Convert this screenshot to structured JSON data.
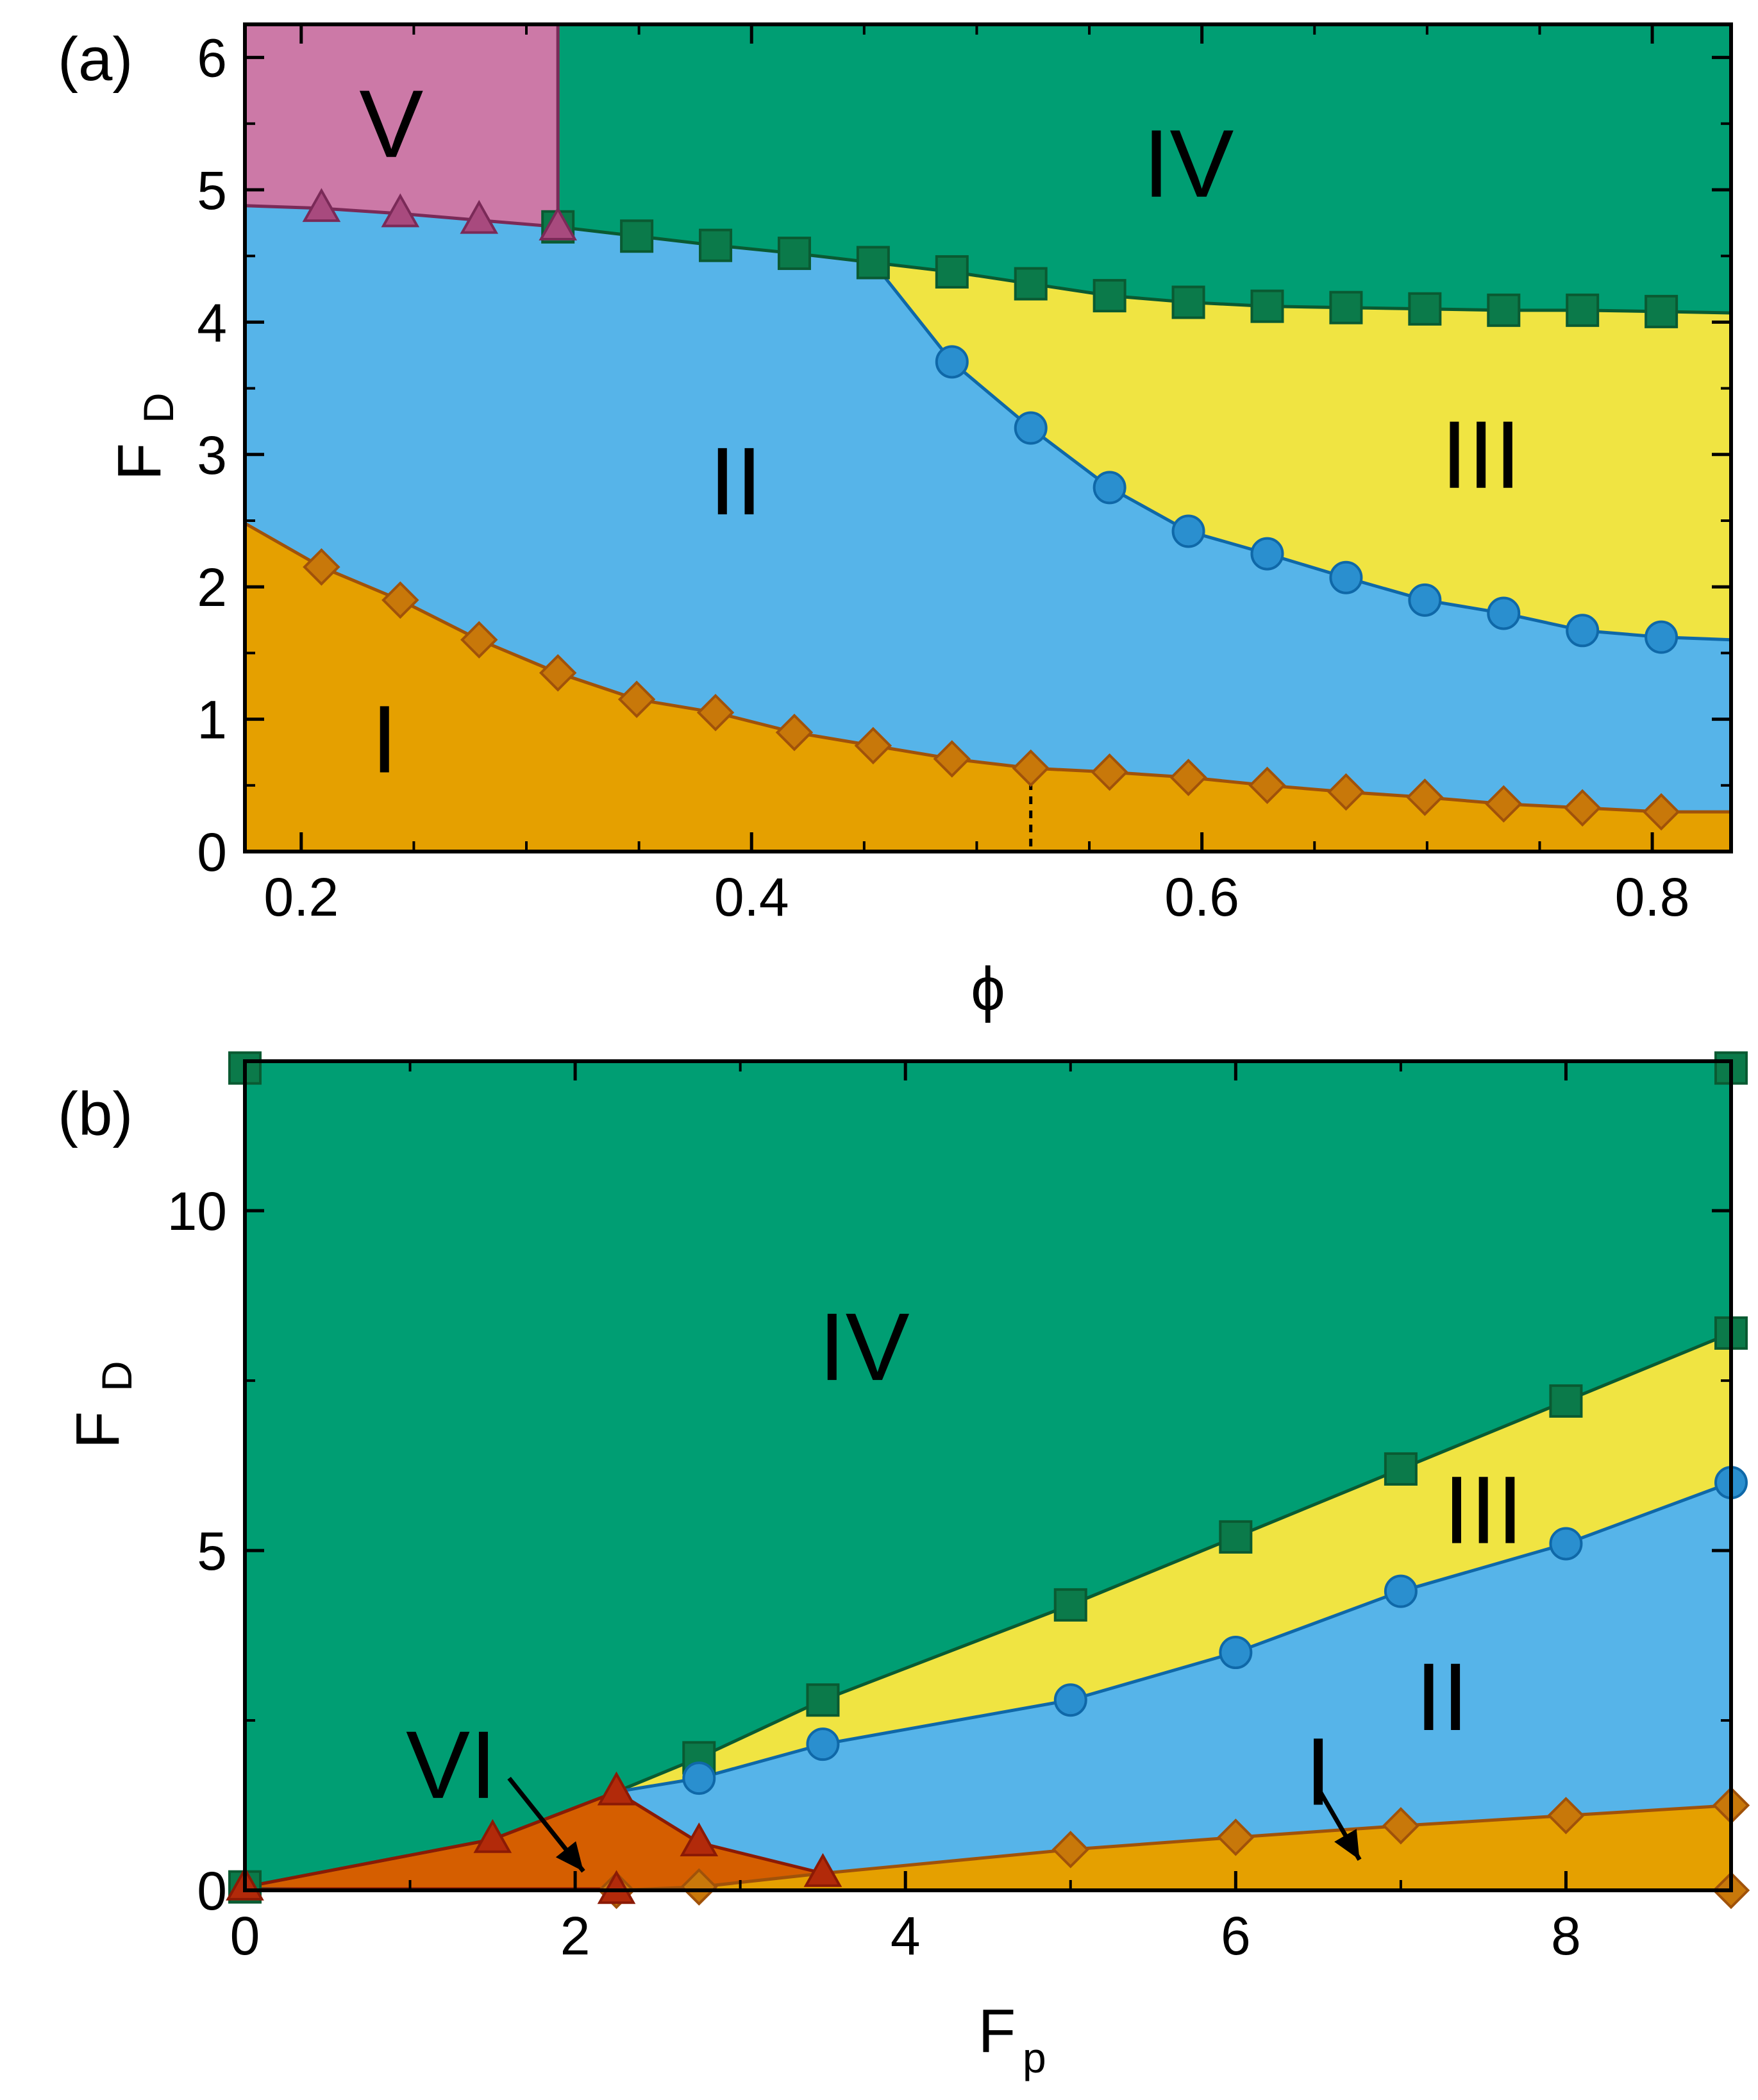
{
  "chart_data": [
    {
      "type": "area",
      "panel_label": "(a)",
      "xlabel": "ϕ",
      "ylabel": "F",
      "ylabel_sub": "D",
      "xlim": [
        0.175,
        0.835
      ],
      "ylim": [
        0,
        6.25
      ],
      "xticks": [
        0.2,
        0.4,
        0.6,
        0.8
      ],
      "xtick_labels": [
        "0.2",
        "0.4",
        "0.6",
        "0.8"
      ],
      "yticks": [
        0,
        1,
        2,
        3,
        4,
        5,
        6
      ],
      "ytick_labels": [
        "0",
        "1",
        "2",
        "3",
        "4",
        "5",
        "6"
      ],
      "x_minor_step": 0.05,
      "y_minor_step": 0.5,
      "series": [
        {
          "name": "I-II boundary",
          "marker": "diamond",
          "color": "#e5a000",
          "stroke": "#a0520a",
          "line": [
            [
              0.175,
              2.48
            ],
            [
              0.835,
              0.3
            ]
          ],
          "points": [
            [
              0.209,
              2.15
            ],
            [
              0.244,
              1.9
            ],
            [
              0.279,
              1.6
            ],
            [
              0.314,
              1.35
            ],
            [
              0.349,
              1.15
            ],
            [
              0.384,
              1.05
            ],
            [
              0.419,
              0.9
            ],
            [
              0.454,
              0.8
            ],
            [
              0.489,
              0.7
            ],
            [
              0.524,
              0.63
            ],
            [
              0.559,
              0.6
            ],
            [
              0.594,
              0.56
            ],
            [
              0.629,
              0.5
            ],
            [
              0.664,
              0.45
            ],
            [
              0.699,
              0.41
            ],
            [
              0.734,
              0.36
            ],
            [
              0.769,
              0.33
            ],
            [
              0.804,
              0.3
            ]
          ]
        },
        {
          "name": "II-III boundary",
          "marker": "circle",
          "color": "#56b4e9",
          "stroke": "#0f68a8",
          "line": [
            [
              0.455,
              4.45
            ],
            [
              0.835,
              1.6
            ]
          ],
          "points": [
            [
              0.489,
              3.7
            ],
            [
              0.524,
              3.2
            ],
            [
              0.559,
              2.75
            ],
            [
              0.594,
              2.42
            ],
            [
              0.629,
              2.25
            ],
            [
              0.664,
              2.07
            ],
            [
              0.699,
              1.9
            ],
            [
              0.734,
              1.8
            ],
            [
              0.769,
              1.67
            ],
            [
              0.804,
              1.62
            ]
          ]
        },
        {
          "name": "IV boundary",
          "marker": "square",
          "color": "#009e73",
          "stroke": "#0a5a32",
          "line": [
            [
              0.314,
              4.72
            ],
            [
              0.835,
              4.07
            ]
          ],
          "points": [
            [
              0.314,
              4.72
            ],
            [
              0.349,
              4.65
            ],
            [
              0.384,
              4.58
            ],
            [
              0.419,
              4.52
            ],
            [
              0.454,
              4.45
            ],
            [
              0.489,
              4.38
            ],
            [
              0.524,
              4.29
            ],
            [
              0.559,
              4.2
            ],
            [
              0.594,
              4.15
            ],
            [
              0.629,
              4.12
            ],
            [
              0.664,
              4.11
            ],
            [
              0.699,
              4.1
            ],
            [
              0.734,
              4.09
            ],
            [
              0.769,
              4.09
            ],
            [
              0.804,
              4.08
            ]
          ]
        },
        {
          "name": "V boundary",
          "marker": "triangle",
          "color": "#cc79a7",
          "stroke": "#7a2a58",
          "line": [
            [
              0.175,
              4.88
            ],
            [
              0.314,
              4.72
            ]
          ],
          "points": [
            [
              0.209,
              4.86
            ],
            [
              0.244,
              4.82
            ],
            [
              0.279,
              4.77
            ],
            [
              0.314,
              4.72
            ]
          ]
        }
      ],
      "vertical_marker": {
        "x": 0.524,
        "style": "dotted"
      },
      "region_labels": [
        {
          "text": "V",
          "x": 0.24,
          "y": 5.5
        },
        {
          "text": "IV",
          "x": 0.594,
          "y": 5.2
        },
        {
          "text": "III",
          "x": 0.724,
          "y": 3.0
        },
        {
          "text": "II",
          "x": 0.393,
          "y": 2.8
        },
        {
          "text": "I",
          "x": 0.237,
          "y": 0.85
        }
      ]
    },
    {
      "type": "area",
      "panel_label": "(b)",
      "xlabel": "F",
      "xlabel_sub": "p",
      "ylabel": "F",
      "ylabel_sub": "D",
      "xlim": [
        0,
        9
      ],
      "ylim": [
        0,
        12.2
      ],
      "xticks": [
        0,
        2,
        4,
        6,
        8
      ],
      "xtick_labels": [
        "0",
        "2",
        "4",
        "6",
        "8"
      ],
      "yticks": [
        0,
        5,
        10
      ],
      "ytick_labels": [
        "0",
        "5",
        "10"
      ],
      "x_minor_step": 1,
      "y_minor_step": 2.5,
      "series": [
        {
          "name": "IV boundary",
          "marker": "square",
          "color": "#009e73",
          "stroke": "#0a5a32",
          "points": [
            [
              0,
              0.05
            ],
            [
              0,
              12.1
            ],
            [
              2.75,
              1.95
            ],
            [
              3.5,
              2.8
            ],
            [
              5,
              4.2
            ],
            [
              6,
              5.2
            ],
            [
              7,
              6.2
            ],
            [
              8,
              7.2
            ],
            [
              9,
              8.2
            ],
            [
              9,
              12.1
            ]
          ]
        },
        {
          "name": "III-II boundary",
          "marker": "circle",
          "color": "#56b4e9",
          "stroke": "#0f68a8",
          "points": [
            [
              2.75,
              1.65
            ],
            [
              3.5,
              2.15
            ],
            [
              5,
              2.8
            ],
            [
              6,
              3.5
            ],
            [
              7,
              4.4
            ],
            [
              8,
              5.1
            ],
            [
              9,
              6.0
            ]
          ]
        },
        {
          "name": "I boundary",
          "marker": "diamond",
          "color": "#e5a000",
          "stroke": "#a0520a",
          "points": [
            [
              2.25,
              0.0
            ],
            [
              2.75,
              0.05
            ],
            [
              5,
              0.6
            ],
            [
              6,
              0.78
            ],
            [
              7,
              0.95
            ],
            [
              8,
              1.1
            ],
            [
              9,
              1.25
            ],
            [
              9,
              0.0
            ]
          ]
        },
        {
          "name": "VI boundary",
          "marker": "triangle",
          "color": "#d55e00",
          "stroke": "#8b1a05",
          "points": [
            [
              0,
              0.05
            ],
            [
              1.5,
              0.75
            ],
            [
              2.25,
              1.45
            ],
            [
              2.75,
              0.7
            ],
            [
              3.5,
              0.25
            ],
            [
              2.25,
              0.0
            ]
          ]
        }
      ],
      "region_labels": [
        {
          "text": "IV",
          "x": 3.75,
          "y": 8.0
        },
        {
          "text": "III",
          "x": 7.5,
          "y": 5.6
        },
        {
          "text": "II",
          "x": 7.25,
          "y": 2.85
        },
        {
          "text": "I",
          "x": 6.5,
          "y": 1.75
        },
        {
          "text": "VI",
          "x": 1.25,
          "y": 1.85
        }
      ],
      "arrows": [
        {
          "label": "VI",
          "from": [
            1.6,
            1.65
          ],
          "to": [
            2.05,
            0.28
          ]
        },
        {
          "label": "I",
          "from": [
            6.5,
            1.5
          ],
          "to": [
            6.75,
            0.45
          ]
        }
      ]
    }
  ]
}
